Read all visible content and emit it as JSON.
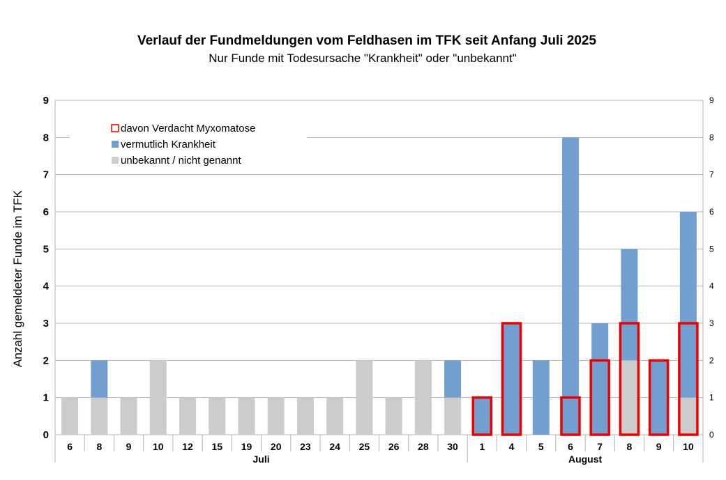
{
  "colors": {
    "krankheit": "#729fcf",
    "unbekannt": "#cccccc",
    "myxomatose": "#ee0000",
    "grid": "#b3b3b3"
  },
  "chart_data": {
    "type": "bar",
    "stacked": true,
    "title": "Verlauf der Fundmeldungen vom Feldhasen im TFK seit Anfang Juli 2025",
    "subtitle": "Nur Funde mit Todesursache \"Krankheit\" oder \"unbekannt\"",
    "ylabel": "Anzahl gemeldeter Funde im TFK",
    "ylim": [
      0,
      9
    ],
    "yticks": [
      0,
      1,
      2,
      3,
      4,
      5,
      6,
      7,
      8,
      9
    ],
    "grid": true,
    "legend_position": "top-left",
    "categories": [
      "6",
      "8",
      "9",
      "10",
      "12",
      "15",
      "19",
      "20",
      "23",
      "24",
      "25",
      "26",
      "28",
      "30",
      "1",
      "4",
      "5",
      "6",
      "7",
      "8",
      "9",
      "10"
    ],
    "groups": [
      {
        "label": "Juli",
        "count": 14
      },
      {
        "label": "August",
        "count": 8
      }
    ],
    "series": [
      {
        "name": "unbekannt / nicht genannt",
        "values": [
          1,
          1,
          1,
          2,
          1,
          1,
          1,
          1,
          1,
          1,
          2,
          1,
          2,
          1,
          0,
          0,
          0,
          0,
          0,
          2,
          0,
          1
        ]
      },
      {
        "name": "vermutlich Krankheit",
        "values": [
          0,
          1,
          0,
          0,
          0,
          0,
          0,
          0,
          0,
          0,
          0,
          0,
          0,
          1,
          1,
          3,
          2,
          8,
          3,
          3,
          2,
          5
        ]
      },
      {
        "name": "davon Verdacht Myxomatose",
        "values": [
          0,
          0,
          0,
          0,
          0,
          0,
          0,
          0,
          0,
          0,
          0,
          0,
          0,
          0,
          1,
          3,
          0,
          1,
          2,
          3,
          2,
          3
        ]
      }
    ]
  }
}
